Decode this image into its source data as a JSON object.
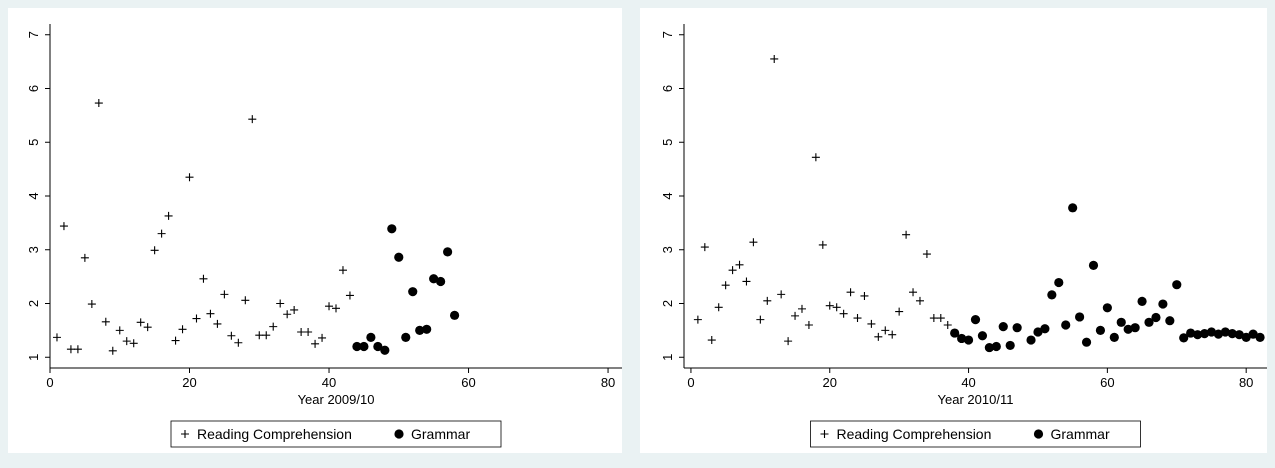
{
  "page": {
    "background": "#eaf2f3",
    "panel_background": "#ffffff",
    "marker_color": "#000000"
  },
  "legend_labels": {
    "reading": "Reading Comprehension",
    "grammar": "Grammar"
  },
  "chart_data": [
    {
      "type": "scatter",
      "xlabel": "Year 2009/10",
      "ylabel": "",
      "xlim": [
        0,
        82
      ],
      "ylim": [
        0.8,
        7.2
      ],
      "xticks": [
        0,
        20,
        40,
        60,
        80
      ],
      "yticks": [
        1,
        2,
        3,
        4,
        5,
        6,
        7
      ],
      "grid": false,
      "legend_position": "bottom",
      "series": [
        {
          "name": "Reading Comprehension",
          "marker": "plus",
          "points": [
            [
              1,
              1.37
            ],
            [
              2,
              3.44
            ],
            [
              3,
              1.15
            ],
            [
              4,
              1.15
            ],
            [
              5,
              2.85
            ],
            [
              6,
              1.99
            ],
            [
              7,
              5.73
            ],
            [
              8,
              1.66
            ],
            [
              9,
              1.12
            ],
            [
              10,
              1.5
            ],
            [
              11,
              1.3
            ],
            [
              12,
              1.26
            ],
            [
              13,
              1.65
            ],
            [
              14,
              1.56
            ],
            [
              15,
              2.99
            ],
            [
              16,
              3.3
            ],
            [
              17,
              3.63
            ],
            [
              18,
              1.31
            ],
            [
              19,
              1.52
            ],
            [
              20,
              4.35
            ],
            [
              21,
              1.72
            ],
            [
              22,
              2.46
            ],
            [
              23,
              1.81
            ],
            [
              24,
              1.62
            ],
            [
              25,
              2.17
            ],
            [
              26,
              1.4
            ],
            [
              27,
              1.27
            ],
            [
              28,
              2.06
            ],
            [
              29,
              5.43
            ],
            [
              30,
              1.41
            ],
            [
              31,
              1.41
            ],
            [
              32,
              1.57
            ],
            [
              33,
              2.0
            ],
            [
              34,
              1.8
            ],
            [
              35,
              1.88
            ],
            [
              36,
              1.47
            ],
            [
              37,
              1.47
            ],
            [
              38,
              1.25
            ],
            [
              39,
              1.36
            ],
            [
              40,
              1.95
            ],
            [
              41,
              1.91
            ],
            [
              42,
              2.62
            ],
            [
              43,
              2.15
            ]
          ]
        },
        {
          "name": "Grammar",
          "marker": "circle",
          "points": [
            [
              44,
              1.2
            ],
            [
              45,
              1.2
            ],
            [
              46,
              1.37
            ],
            [
              47,
              1.2
            ],
            [
              48,
              1.13
            ],
            [
              49,
              3.39
            ],
            [
              50,
              2.86
            ],
            [
              51,
              1.37
            ],
            [
              52,
              2.22
            ],
            [
              53,
              1.5
            ],
            [
              54,
              1.52
            ],
            [
              55,
              2.46
            ],
            [
              56,
              2.41
            ],
            [
              57,
              2.96
            ],
            [
              58,
              1.78
            ]
          ]
        }
      ]
    },
    {
      "type": "scatter",
      "xlabel": "Year 2010/11",
      "ylabel": "",
      "xlim": [
        -1,
        83
      ],
      "ylim": [
        0.8,
        7.2
      ],
      "xticks": [
        0,
        20,
        40,
        60,
        80
      ],
      "yticks": [
        1,
        2,
        3,
        4,
        5,
        6,
        7
      ],
      "grid": false,
      "legend_position": "bottom",
      "series": [
        {
          "name": "Reading Comprehension",
          "marker": "plus",
          "points": [
            [
              1,
              1.7
            ],
            [
              2,
              3.05
            ],
            [
              3,
              1.32
            ],
            [
              4,
              1.93
            ],
            [
              5,
              2.34
            ],
            [
              6,
              2.62
            ],
            [
              7,
              2.72
            ],
            [
              8,
              2.41
            ],
            [
              9,
              3.14
            ],
            [
              10,
              1.7
            ],
            [
              11,
              2.05
            ],
            [
              12,
              6.55
            ],
            [
              13,
              2.17
            ],
            [
              14,
              1.3
            ],
            [
              15,
              1.77
            ],
            [
              16,
              1.9
            ],
            [
              17,
              1.6
            ],
            [
              18,
              4.72
            ],
            [
              19,
              3.09
            ],
            [
              20,
              1.96
            ],
            [
              21,
              1.93
            ],
            [
              22,
              1.81
            ],
            [
              23,
              2.21
            ],
            [
              24,
              1.73
            ],
            [
              25,
              2.14
            ],
            [
              26,
              1.62
            ],
            [
              27,
              1.38
            ],
            [
              28,
              1.5
            ],
            [
              29,
              1.42
            ],
            [
              30,
              1.85
            ],
            [
              31,
              3.28
            ],
            [
              32,
              2.21
            ],
            [
              33,
              2.05
            ],
            [
              34,
              2.92
            ],
            [
              35,
              1.73
            ],
            [
              36,
              1.73
            ],
            [
              37,
              1.6
            ]
          ]
        },
        {
          "name": "Grammar",
          "marker": "circle",
          "points": [
            [
              38,
              1.45
            ],
            [
              39,
              1.35
            ],
            [
              40,
              1.32
            ],
            [
              41,
              1.7
            ],
            [
              42,
              1.4
            ],
            [
              43,
              1.18
            ],
            [
              44,
              1.2
            ],
            [
              45,
              1.57
            ],
            [
              46,
              1.22
            ],
            [
              47,
              1.55
            ],
            [
              49,
              1.32
            ],
            [
              50,
              1.47
            ],
            [
              51,
              1.53
            ],
            [
              52,
              2.16
            ],
            [
              53,
              2.39
            ],
            [
              54,
              1.6
            ],
            [
              55,
              3.78
            ],
            [
              56,
              1.75
            ],
            [
              57,
              1.28
            ],
            [
              58,
              2.71
            ],
            [
              59,
              1.5
            ],
            [
              60,
              1.92
            ],
            [
              61,
              1.37
            ],
            [
              62,
              1.65
            ],
            [
              63,
              1.52
            ],
            [
              64,
              1.55
            ],
            [
              65,
              2.04
            ],
            [
              66,
              1.65
            ],
            [
              67,
              1.74
            ],
            [
              68,
              1.99
            ],
            [
              69,
              1.68
            ],
            [
              70,
              2.35
            ],
            [
              71,
              1.36
            ],
            [
              72,
              1.45
            ],
            [
              73,
              1.42
            ],
            [
              74,
              1.44
            ],
            [
              75,
              1.47
            ],
            [
              76,
              1.43
            ],
            [
              77,
              1.47
            ],
            [
              78,
              1.44
            ],
            [
              79,
              1.42
            ],
            [
              80,
              1.37
            ],
            [
              81,
              1.43
            ],
            [
              82,
              1.37
            ]
          ]
        }
      ]
    }
  ]
}
